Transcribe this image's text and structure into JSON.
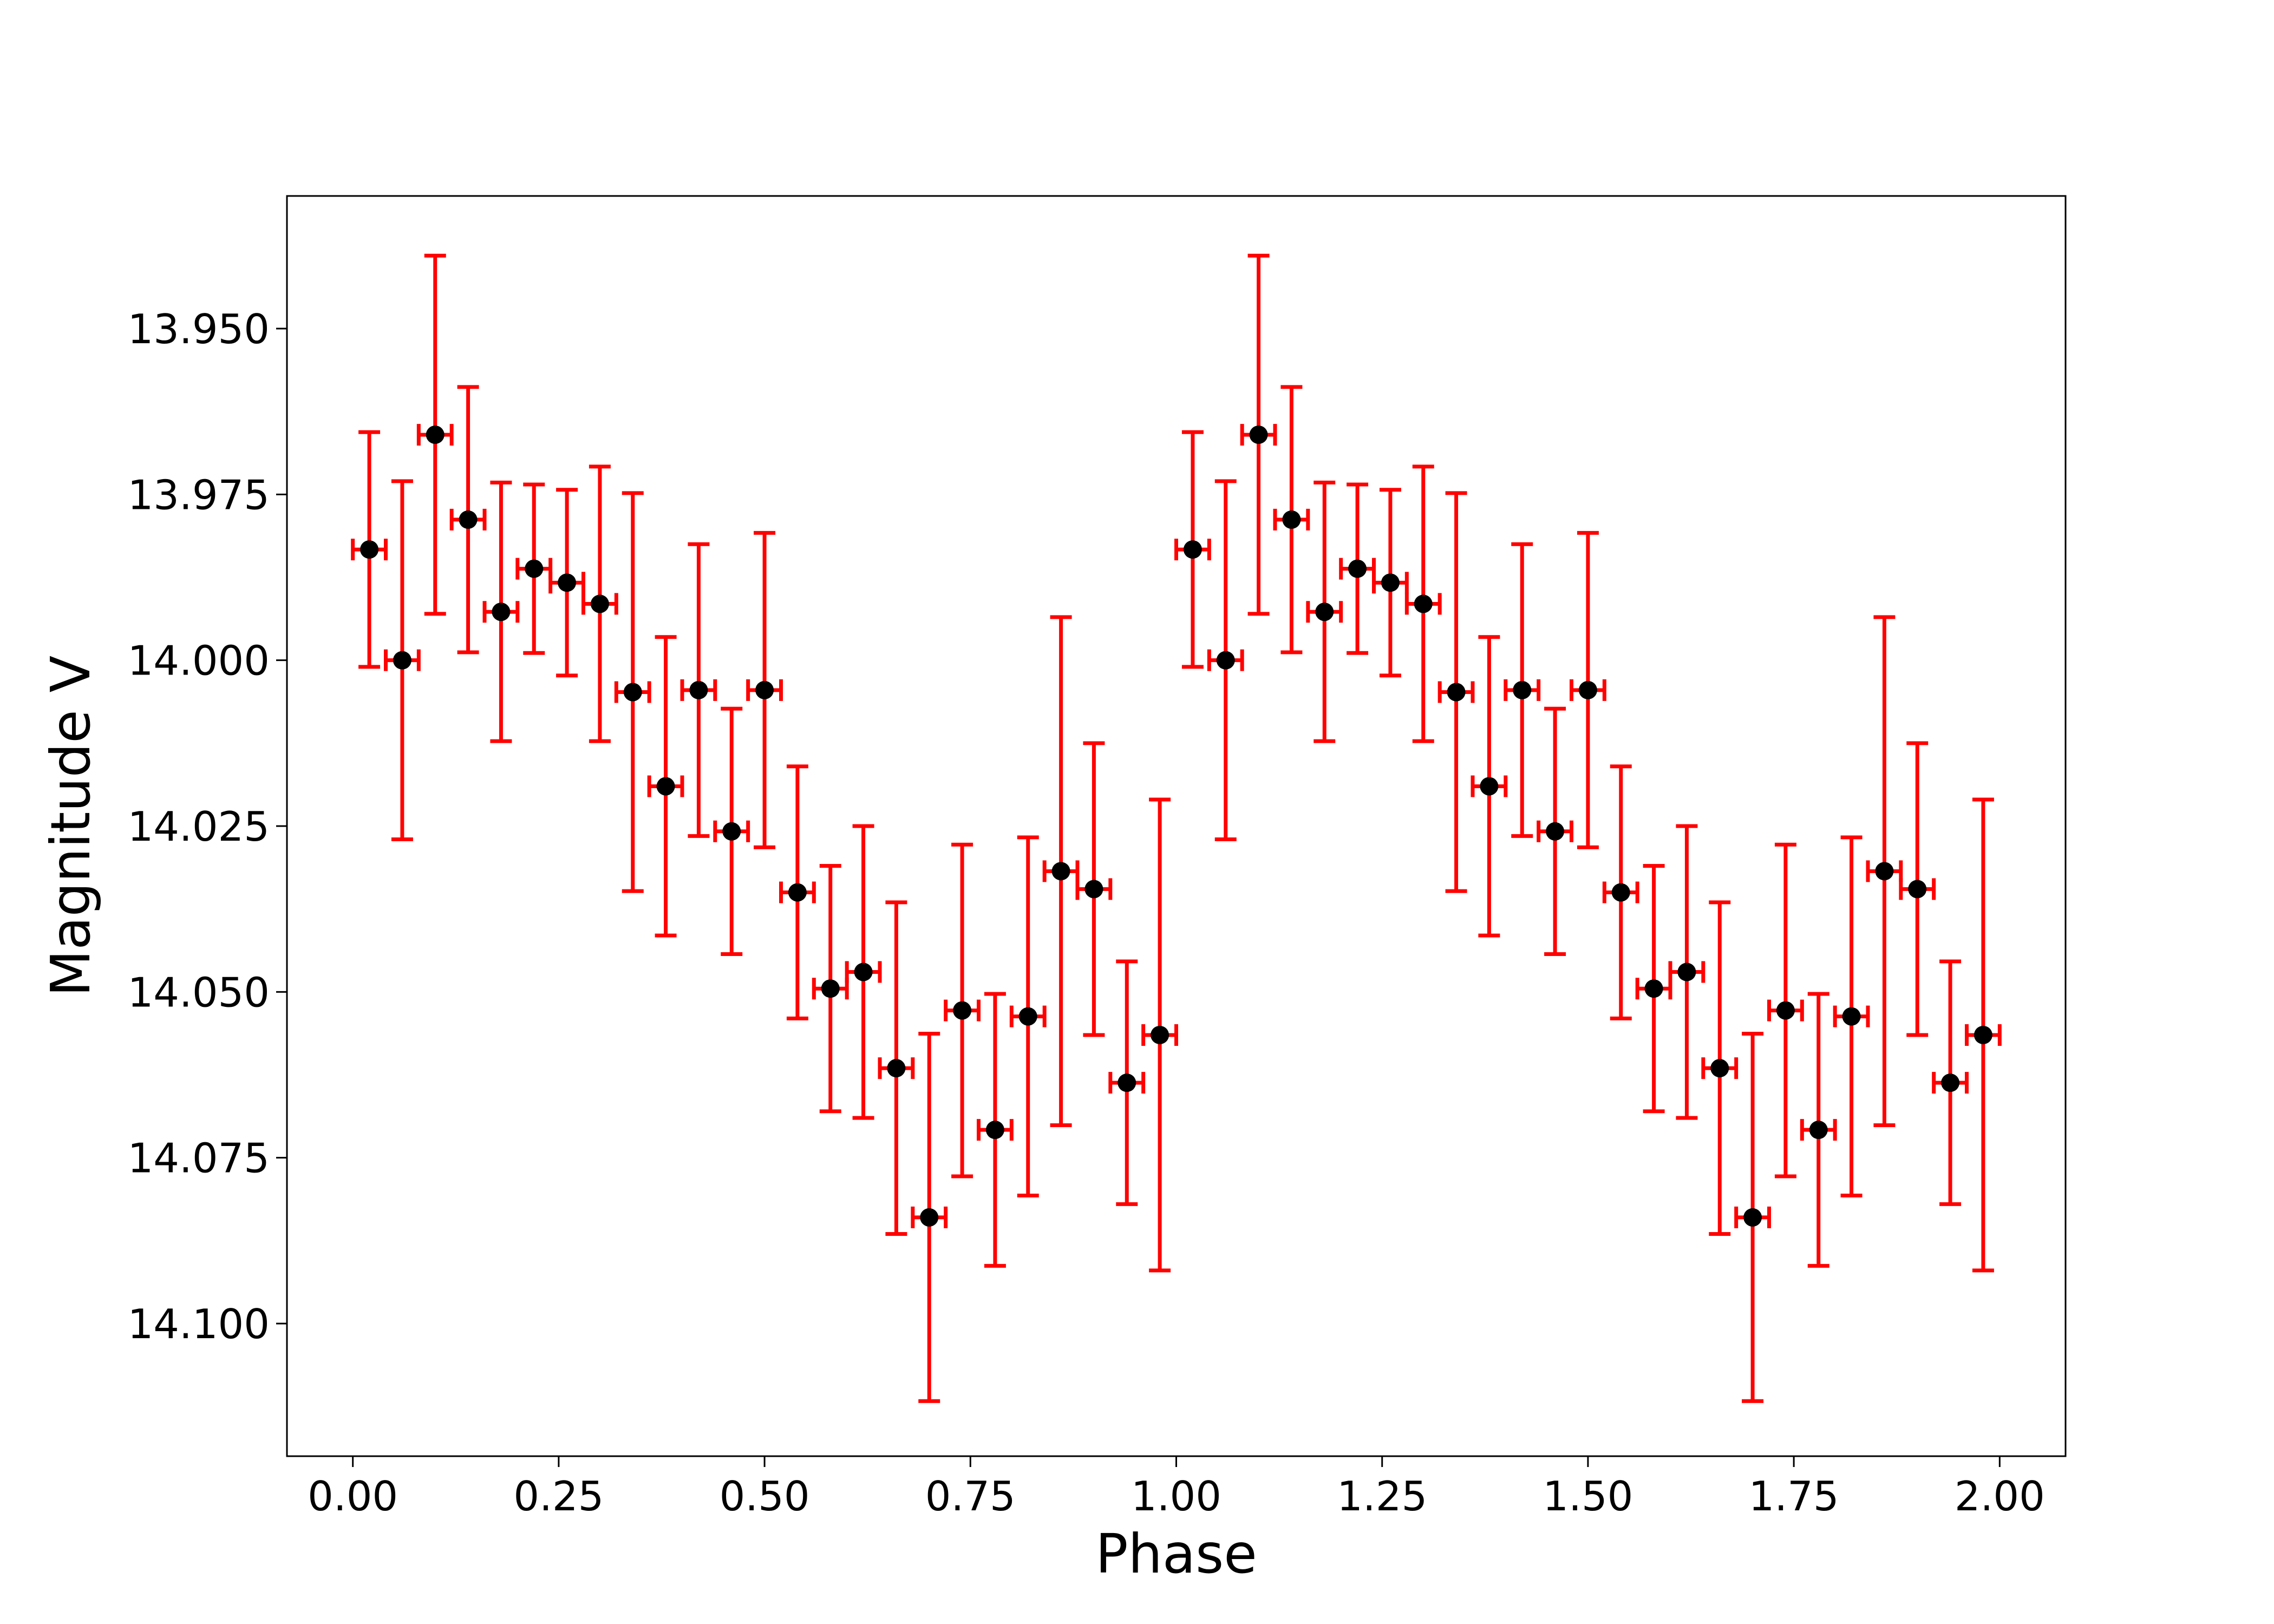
{
  "chart_data": {
    "type": "scatter",
    "xlabel": "Phase",
    "ylabel": "Magnitude V",
    "xlim": [
      -0.08,
      2.08
    ],
    "ylim": [
      14.12,
      13.93
    ],
    "y_inverted": true,
    "grid": false,
    "x_ticks": [
      "0.00",
      "0.25",
      "0.50",
      "0.75",
      "1.00",
      "1.25",
      "1.50",
      "1.75",
      "2.00"
    ],
    "y_ticks": [
      "13.950",
      "13.975",
      "14.000",
      "14.025",
      "14.050",
      "14.075",
      "14.100"
    ],
    "x_error": 0.02,
    "points": [
      {
        "x": 0.02,
        "y": 13.9833,
        "yerr": 0.0177
      },
      {
        "x": 0.06,
        "y": 14.0,
        "yerr": 0.027
      },
      {
        "x": 0.1,
        "y": 13.966,
        "yerr": 0.027
      },
      {
        "x": 0.14,
        "y": 13.9788,
        "yerr": 0.02
      },
      {
        "x": 0.18,
        "y": 13.9927,
        "yerr": 0.0195
      },
      {
        "x": 0.22,
        "y": 13.9862,
        "yerr": 0.0127
      },
      {
        "x": 0.26,
        "y": 13.9883,
        "yerr": 0.014
      },
      {
        "x": 0.3,
        "y": 13.9915,
        "yerr": 0.0207
      },
      {
        "x": 0.34,
        "y": 14.0048,
        "yerr": 0.03
      },
      {
        "x": 0.38,
        "y": 14.019,
        "yerr": 0.0225
      },
      {
        "x": 0.42,
        "y": 14.0045,
        "yerr": 0.022
      },
      {
        "x": 0.46,
        "y": 14.0258,
        "yerr": 0.0185
      },
      {
        "x": 0.5,
        "y": 14.0045,
        "yerr": 0.0237
      },
      {
        "x": 0.54,
        "y": 14.035,
        "yerr": 0.019
      },
      {
        "x": 0.58,
        "y": 14.0495,
        "yerr": 0.0185
      },
      {
        "x": 0.62,
        "y": 14.047,
        "yerr": 0.022
      },
      {
        "x": 0.66,
        "y": 14.0615,
        "yerr": 0.025
      },
      {
        "x": 0.7,
        "y": 14.084,
        "yerr": 0.0277
      },
      {
        "x": 0.74,
        "y": 14.0528,
        "yerr": 0.025
      },
      {
        "x": 0.78,
        "y": 14.0708,
        "yerr": 0.0205
      },
      {
        "x": 0.82,
        "y": 14.0537,
        "yerr": 0.027
      },
      {
        "x": 0.86,
        "y": 14.0318,
        "yerr": 0.0383
      },
      {
        "x": 0.9,
        "y": 14.0345,
        "yerr": 0.022
      },
      {
        "x": 0.94,
        "y": 14.0637,
        "yerr": 0.0183
      },
      {
        "x": 0.98,
        "y": 14.0565,
        "yerr": 0.0355
      }
    ],
    "repeat_period": 1.0
  }
}
